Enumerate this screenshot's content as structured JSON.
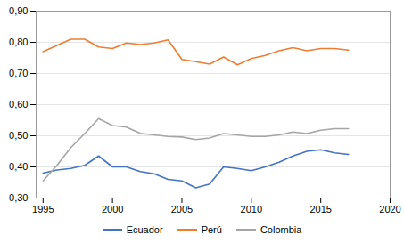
{
  "chart_data": {
    "type": "line",
    "x": [
      1995,
      1996,
      1997,
      1998,
      1999,
      2000,
      2001,
      2002,
      2003,
      2004,
      2005,
      2006,
      2007,
      2008,
      2009,
      2010,
      2011,
      2012,
      2013,
      2014,
      2015,
      2016,
      2017
    ],
    "series": [
      {
        "name": "Ecuador",
        "color": "#4472C4",
        "values": [
          0.38,
          0.39,
          0.395,
          0.405,
          0.435,
          0.4,
          0.4,
          0.385,
          0.378,
          0.36,
          0.355,
          0.333,
          0.345,
          0.4,
          0.395,
          0.388,
          0.4,
          0.415,
          0.435,
          0.45,
          0.455,
          0.445,
          0.44
        ]
      },
      {
        "name": "Perú",
        "color": "#ED7D31",
        "values": [
          0.77,
          0.79,
          0.81,
          0.81,
          0.785,
          0.78,
          0.798,
          0.793,
          0.798,
          0.808,
          0.745,
          0.738,
          0.73,
          0.753,
          0.728,
          0.748,
          0.758,
          0.773,
          0.783,
          0.773,
          0.78,
          0.78,
          0.775
        ]
      },
      {
        "name": "Colombia",
        "color": "#A5A5A5",
        "values": [
          0.355,
          0.405,
          0.462,
          0.507,
          0.555,
          0.533,
          0.528,
          0.508,
          0.503,
          0.498,
          0.496,
          0.488,
          0.493,
          0.507,
          0.503,
          0.498,
          0.498,
          0.503,
          0.512,
          0.507,
          0.518,
          0.523,
          0.523
        ]
      }
    ],
    "xlim": [
      1994.5,
      2020
    ],
    "xticks": [
      1995,
      2000,
      2005,
      2010,
      2015,
      2020
    ],
    "ylim": [
      0.3,
      0.9
    ],
    "yticks": [
      {
        "value": 0.3,
        "label": "0,30"
      },
      {
        "value": 0.4,
        "label": "0,40"
      },
      {
        "value": 0.5,
        "label": "0,50"
      },
      {
        "value": 0.6,
        "label": "0,60"
      },
      {
        "value": 0.7,
        "label": "0,70"
      },
      {
        "value": 0.8,
        "label": "0,80"
      },
      {
        "value": 0.9,
        "label": "0,90"
      }
    ],
    "grid": true,
    "legend": "bottom"
  }
}
